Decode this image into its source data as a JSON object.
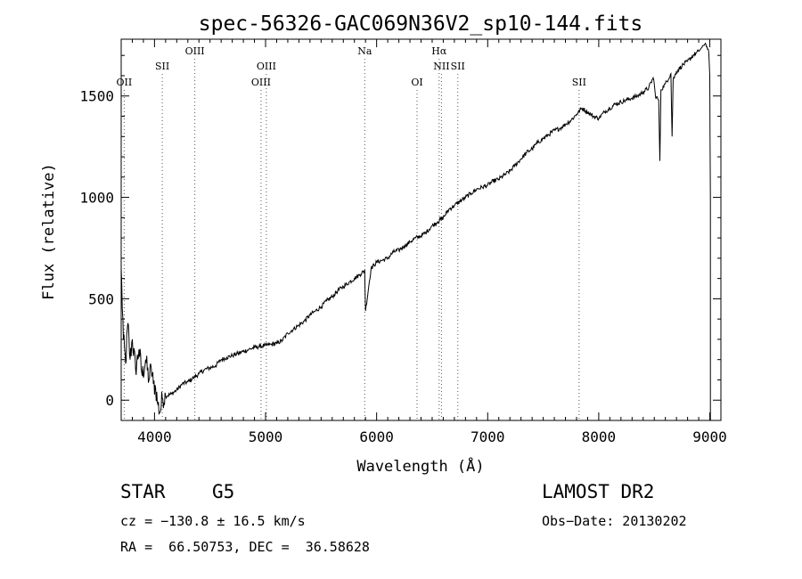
{
  "chart_data": {
    "type": "line",
    "title": "spec-56326-GAC069N36V2_sp10-144.fits",
    "xlabel": "Wavelength (Å)",
    "ylabel": "Flux (relative)",
    "xlim": [
      3700,
      9100
    ],
    "ylim": [
      -100,
      1780
    ],
    "xticks": [
      4000,
      5000,
      6000,
      7000,
      8000,
      9000
    ],
    "yticks": [
      0,
      500,
      1000,
      1500
    ],
    "series": [
      {
        "name": "flux",
        "x": [
          3700,
          3720,
          3740,
          3760,
          3780,
          3800,
          3830,
          3860,
          3890,
          3920,
          3950,
          3970,
          3990,
          4010,
          4030,
          4050,
          4070,
          4100,
          4150,
          4200,
          4250,
          4300,
          4350,
          4400,
          4450,
          4500,
          4550,
          4600,
          4650,
          4700,
          4750,
          4800,
          4850,
          4900,
          4950,
          5000,
          5050,
          5100,
          5150,
          5200,
          5250,
          5300,
          5350,
          5400,
          5450,
          5500,
          5550,
          5600,
          5650,
          5700,
          5750,
          5800,
          5850,
          5893,
          5900,
          5950,
          6000,
          6050,
          6100,
          6150,
          6200,
          6250,
          6300,
          6350,
          6400,
          6450,
          6500,
          6550,
          6600,
          6650,
          6700,
          6750,
          6800,
          6850,
          6900,
          6950,
          7000,
          7050,
          7100,
          7150,
          7200,
          7250,
          7300,
          7350,
          7400,
          7450,
          7500,
          7550,
          7600,
          7650,
          7700,
          7750,
          7800,
          7850,
          7900,
          7950,
          8000,
          8050,
          8100,
          8150,
          8200,
          8250,
          8300,
          8350,
          8400,
          8450,
          8490,
          8500,
          8510,
          8540,
          8550,
          8560,
          8600,
          8650,
          8660,
          8670,
          8700,
          8750,
          8800,
          8850,
          8900,
          8930,
          8960,
          8990,
          9000,
          9005
        ],
        "y": [
          650,
          300,
          180,
          380,
          200,
          300,
          150,
          250,
          120,
          200,
          100,
          160,
          80,
          60,
          -20,
          -60,
          10,
          20,
          30,
          50,
          80,
          90,
          110,
          130,
          150,
          160,
          170,
          200,
          210,
          220,
          230,
          240,
          250,
          260,
          265,
          270,
          275,
          280,
          295,
          330,
          350,
          370,
          390,
          420,
          440,
          460,
          490,
          510,
          540,
          560,
          580,
          600,
          620,
          640,
          440,
          650,
          680,
          690,
          700,
          730,
          740,
          760,
          780,
          800,
          810,
          830,
          860,
          880,
          900,
          940,
          960,
          980,
          1000,
          1020,
          1040,
          1050,
          1060,
          1080,
          1090,
          1110,
          1130,
          1160,
          1190,
          1220,
          1240,
          1270,
          1290,
          1310,
          1330,
          1340,
          1360,
          1380,
          1410,
          1440,
          1420,
          1400,
          1390,
          1420,
          1440,
          1460,
          1470,
          1480,
          1490,
          1500,
          1520,
          1540,
          1590,
          1560,
          1500,
          1480,
          1180,
          1530,
          1560,
          1610,
          1300,
          1580,
          1620,
          1650,
          1670,
          1700,
          1720,
          1740,
          1760,
          1720,
          1600,
          1000
        ]
      }
    ],
    "line_markers": [
      {
        "label": "OII",
        "wavelength": 3727,
        "row": 3
      },
      {
        "label": "SII",
        "wavelength": 4070,
        "row": 2
      },
      {
        "label": "OIII",
        "wavelength": 4363,
        "row": 1
      },
      {
        "label": "OIII",
        "wavelength": 4959,
        "row": 3
      },
      {
        "label": "OIII",
        "wavelength": 5007,
        "row": 2
      },
      {
        "label": "Na",
        "wavelength": 5893,
        "row": 1
      },
      {
        "label": "OI",
        "wavelength": 6364,
        "row": 3
      },
      {
        "label": "Hα",
        "wavelength": 6563,
        "row": 1
      },
      {
        "label": "NII",
        "wavelength": 6584,
        "row": 2
      },
      {
        "label": "SII",
        "wavelength": 6731,
        "row": 2
      },
      {
        "label": "SII",
        "wavelength": 7823,
        "row": 3
      }
    ],
    "grid": false
  },
  "info": {
    "object_class": "STAR",
    "subclass": "G5",
    "survey": "LAMOST DR2",
    "redshift_line": "cz = −130.8 ± 16.5 km/s",
    "obs_date_line": "Obs−Date: 20130202",
    "coords_line": "RA =  66.50753, DEC =  36.58628"
  }
}
